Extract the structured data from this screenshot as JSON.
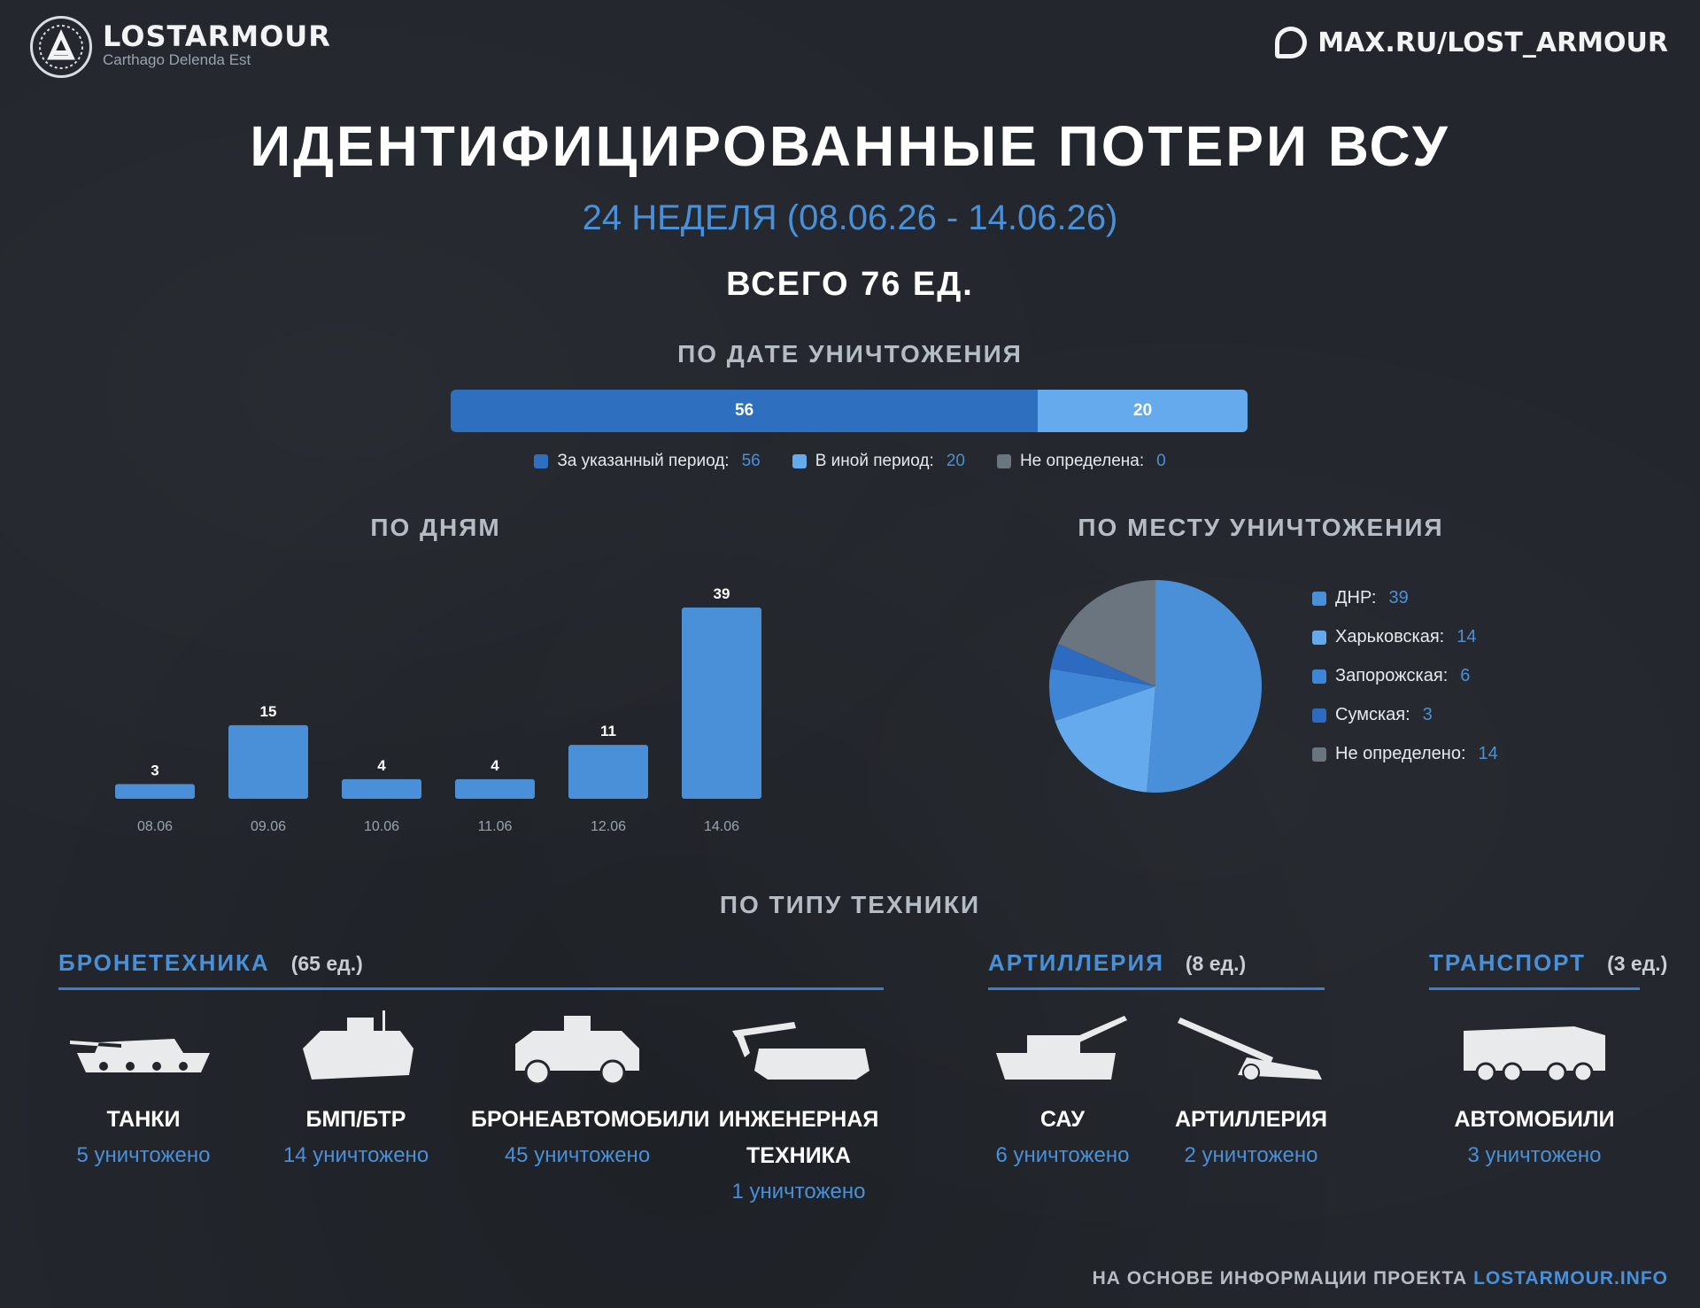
{
  "header": {
    "brand": "LOSTARMOUR",
    "motto": "Carthago Delenda Est",
    "channel": "MAX.RU/LOST_ARMOUR"
  },
  "title": "ИДЕНТИФИЦИРОВАННЫЕ ПОТЕРИ ВСУ",
  "subtitle": "24 НЕДЕЛЯ (08.06.26 - 14.06.26)",
  "total": "ВСЕГО 76 ЕД.",
  "sections": {
    "by_date": "ПО ДАТЕ УНИЧТОЖЕНИЯ",
    "by_day": "ПО ДНЯМ",
    "by_place": "ПО МЕСТУ УНИЧТОЖЕНИЯ",
    "by_type": "ПО ТИПУ ТЕХНИКИ"
  },
  "colors": {
    "blue_dark": "#2f6fbf",
    "blue": "#4a90d9",
    "blue_light": "#66aaee",
    "grey": "#6b7580",
    "accent_text": "#4a90d9"
  },
  "chart_data": [
    {
      "type": "bar",
      "orientation": "horizontal-stacked",
      "title": "ПО ДАТЕ УНИЧТОЖЕНИЯ",
      "series": [
        {
          "name": "За указанный период:",
          "value": 56,
          "label": "56",
          "color": "#2f6fbf"
        },
        {
          "name": "В иной период:",
          "value": 20,
          "label": "20",
          "color": "#66aaee"
        },
        {
          "name": "Не определена:",
          "value": 0,
          "label": "0",
          "color": "#6b7580"
        }
      ],
      "legend": "bottom"
    },
    {
      "type": "bar",
      "title": "ПО ДНЯМ",
      "categories": [
        "08.06",
        "09.06",
        "10.06",
        "11.06",
        "12.06",
        "14.06"
      ],
      "values": [
        3,
        15,
        4,
        4,
        11,
        39
      ],
      "labels": [
        "3",
        "15",
        "4",
        "4",
        "11",
        "39"
      ],
      "ylim": [
        0,
        39
      ],
      "grid": false
    },
    {
      "type": "pie",
      "title": "ПО МЕСТУ УНИЧТОЖЕНИЯ",
      "slices": [
        {
          "name": "ДНР:",
          "value": 39,
          "label": "39",
          "color": "#4a90d9"
        },
        {
          "name": "Харьковская:",
          "value": 14,
          "label": "14",
          "color": "#66aaee"
        },
        {
          "name": "Запорожская:",
          "value": 6,
          "label": "6",
          "color": "#3f85d6"
        },
        {
          "name": "Сумская:",
          "value": 3,
          "label": "3",
          "color": "#2c6bc0"
        },
        {
          "name": "Не определено:",
          "value": 14,
          "label": "14",
          "color": "#6b7580"
        }
      ],
      "legend": "right"
    }
  ],
  "categories": [
    {
      "name": "БРОНЕТЕХНИКА",
      "count": "(65 ед.)",
      "items": [
        {
          "icon": "tank-icon",
          "name": "ТАНКИ",
          "count": "5 уничтожено"
        },
        {
          "icon": "ifv-icon",
          "name": "БМП/БТР",
          "count": "14 уничтожено"
        },
        {
          "icon": "armored-car-icon",
          "name": "БРОНЕАВТОМОБИЛИ",
          "count": "45 уничтожено"
        },
        {
          "icon": "engineering-vehicle-icon",
          "name_line1": "ИНЖЕНЕРНАЯ",
          "name_line2": "ТЕХНИКА",
          "count": "1 уничтожено"
        }
      ]
    },
    {
      "name": "АРТИЛЛЕРИЯ",
      "count": "(8 ед.)",
      "items": [
        {
          "icon": "self-propelled-gun-icon",
          "name": "САУ",
          "count": "6 уничтожено"
        },
        {
          "icon": "howitzer-icon",
          "name": "АРТИЛЛЕРИЯ",
          "count": "2 уничтожено"
        }
      ]
    },
    {
      "name": "ТРАНСПОРТ",
      "count": "(3 ед.)",
      "items": [
        {
          "icon": "truck-icon",
          "name": "АВТОМОБИЛИ",
          "count": "3 уничтожено"
        }
      ]
    }
  ],
  "footer": {
    "text": "НА ОСНОВЕ ИНФОРМАЦИИ ПРОЕКТА ",
    "link": "LOSTARMOUR.INFO"
  }
}
